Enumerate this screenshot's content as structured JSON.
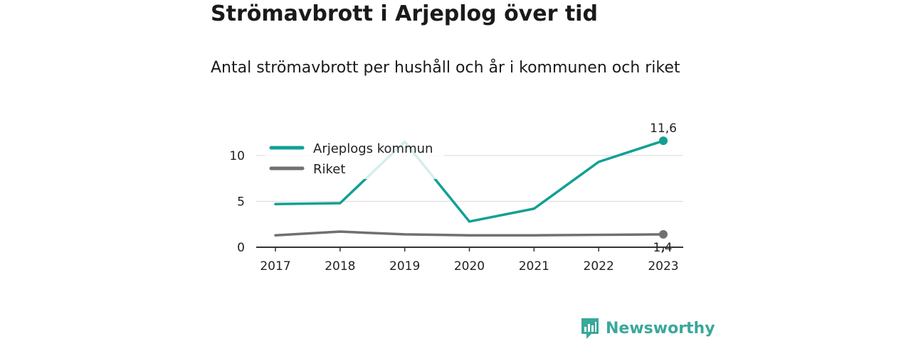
{
  "title": "Strömavbrott i Arjeplog över tid",
  "subtitle": "Antal strömavbrott per hushåll och år i kommunen och riket",
  "brand": {
    "name": "Newsworthy",
    "logo_icon": "newsworthy-bar-chart-icon"
  },
  "colors": {
    "primary": "#12a093",
    "secondary": "#707070",
    "brand": "#3aa89a"
  },
  "chart_data": {
    "type": "line",
    "title": "Strömavbrott i Arjeplog över tid",
    "subtitle": "Antal strömavbrott per hushåll och år i kommunen och riket",
    "x": [
      "2017",
      "2018",
      "2019",
      "2020",
      "2021",
      "2022",
      "2023"
    ],
    "yticks": [
      0,
      5,
      10
    ],
    "ytick_labels": [
      "0",
      "5",
      "10"
    ],
    "ylim": [
      0,
      12
    ],
    "grid": true,
    "legend": "top-left",
    "series": [
      {
        "name": "Arjeplogs kommun",
        "values": [
          4.7,
          4.8,
          11.5,
          2.8,
          4.2,
          9.3,
          11.6
        ],
        "color": "#12a093",
        "end_label": "11,6"
      },
      {
        "name": "Riket",
        "values": [
          1.3,
          1.7,
          1.4,
          1.3,
          1.3,
          1.35,
          1.4
        ],
        "color": "#707070",
        "end_label": "1,4"
      }
    ]
  }
}
